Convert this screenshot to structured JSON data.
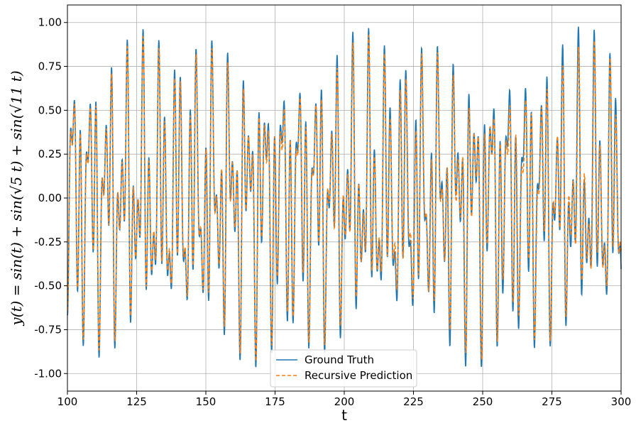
{
  "chart_data": {
    "type": "line",
    "title": "",
    "xlabel": "t",
    "ylabel": "y(t) = sin(t) + sin(√5 t) + sin(√11 t)",
    "xlim": [
      100,
      300
    ],
    "ylim": [
      -1.1,
      1.1
    ],
    "x_ticks": [
      "100",
      "125",
      "150",
      "175",
      "200",
      "225",
      "250",
      "275",
      "300"
    ],
    "y_ticks": [
      "-1.00",
      "-0.75",
      "-0.50",
      "-0.25",
      "0.00",
      "0.25",
      "0.50",
      "0.75",
      "1.00"
    ],
    "grid": true,
    "legend_position": "bottom-center",
    "series": [
      {
        "name": "Ground Truth",
        "color": "#1f77b4",
        "style": "solid",
        "generator": {
          "function": "(sin(t) + sin(sqrt(5)*t) + sin(sqrt(11)*t)) / 3",
          "x_start": 100,
          "x_end": 300,
          "x_step": 0.1
        }
      },
      {
        "name": "Recursive Prediction",
        "color": "#ff7f0e",
        "style": "dashed",
        "generator": {
          "function": "ground truth with small, growing deviation",
          "x_start": 100,
          "x_end": 300,
          "x_step": 0.1
        }
      }
    ]
  }
}
